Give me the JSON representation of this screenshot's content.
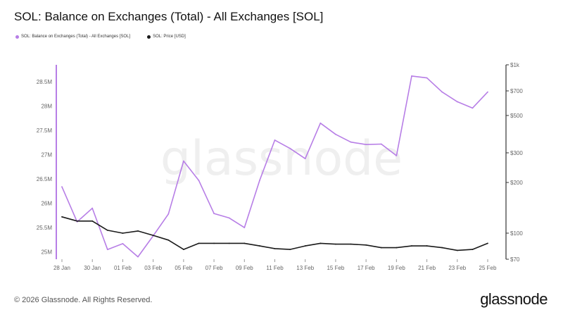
{
  "title": "SOL: Balance on Exchanges (Total) - All Exchanges [SOL]",
  "footer": "© 2026 Glassnode. All Rights Reserved.",
  "brand": "glassnode",
  "watermark": "glassnode",
  "colors": {
    "balance": "#b77ee6",
    "price": "#1a1a1a",
    "axis": "#999999",
    "text": "#666666"
  },
  "chart_data": {
    "type": "line",
    "title": "SOL: Balance on Exchanges (Total) - All Exchanges [SOL]",
    "x_tick_labels": [
      "28 Jan",
      "30 Jan",
      "01 Feb",
      "03 Feb",
      "05 Feb",
      "07 Feb",
      "09 Feb",
      "11 Feb",
      "13 Feb",
      "15 Feb",
      "17 Feb",
      "19 Feb",
      "21 Feb",
      "23 Feb",
      "25 Feb"
    ],
    "left_axis": {
      "ticks": [
        25000000,
        25500000,
        26000000,
        26500000,
        27000000,
        27500000,
        28000000,
        28500000
      ],
      "tick_labels": [
        "25M",
        "25.5M",
        "26M",
        "26.5M",
        "27M",
        "27.5M",
        "28M",
        "28.5M"
      ],
      "ylim": [
        24850000,
        28850000
      ]
    },
    "right_axis": {
      "scale": "log",
      "ticks": [
        70,
        100,
        200,
        300,
        500,
        700,
        1000
      ],
      "tick_labels": [
        "$70",
        "$100",
        "$200",
        "$300",
        "$500",
        "$700",
        "$1k"
      ],
      "ylim": [
        70,
        1000
      ]
    },
    "grid": false,
    "legend_position": "top-left",
    "series": [
      {
        "name": "SOL: Balance on Exchanges (Total) - All Exchanges [SOL]",
        "axis": "left",
        "x": [
          "28 Jan",
          "29 Jan",
          "30 Jan",
          "31 Jan",
          "01 Feb",
          "02 Feb",
          "03 Feb",
          "04 Feb",
          "05 Feb",
          "06 Feb",
          "07 Feb",
          "08 Feb",
          "09 Feb",
          "10 Feb",
          "11 Feb",
          "12 Feb",
          "13 Feb",
          "14 Feb",
          "15 Feb",
          "16 Feb",
          "17 Feb",
          "18 Feb",
          "19 Feb",
          "20 Feb",
          "21 Feb",
          "22 Feb",
          "23 Feb",
          "24 Feb",
          "25 Feb"
        ],
        "values": [
          26340000,
          25620000,
          25900000,
          25050000,
          25170000,
          24900000,
          25330000,
          25780000,
          26870000,
          26470000,
          25790000,
          25700000,
          25500000,
          26470000,
          27300000,
          27130000,
          26920000,
          27650000,
          27420000,
          27260000,
          27210000,
          27220000,
          26980000,
          28620000,
          28580000,
          28290000,
          28090000,
          27960000,
          28290000
        ]
      },
      {
        "name": "SOL: Price [USD]",
        "axis": "right",
        "x": [
          "28 Jan",
          "29 Jan",
          "30 Jan",
          "31 Jan",
          "01 Feb",
          "02 Feb",
          "03 Feb",
          "04 Feb",
          "05 Feb",
          "06 Feb",
          "07 Feb",
          "08 Feb",
          "09 Feb",
          "10 Feb",
          "11 Feb",
          "12 Feb",
          "13 Feb",
          "14 Feb",
          "15 Feb",
          "16 Feb",
          "17 Feb",
          "18 Feb",
          "19 Feb",
          "20 Feb",
          "21 Feb",
          "22 Feb",
          "23 Feb",
          "24 Feb",
          "25 Feb"
        ],
        "values": [
          125,
          118,
          118,
          104,
          100,
          103,
          97,
          91,
          80,
          87,
          87,
          87,
          87,
          84,
          81,
          80,
          84,
          87,
          86,
          86,
          85,
          82,
          82,
          84,
          84,
          82,
          79,
          80,
          87
        ]
      }
    ]
  }
}
